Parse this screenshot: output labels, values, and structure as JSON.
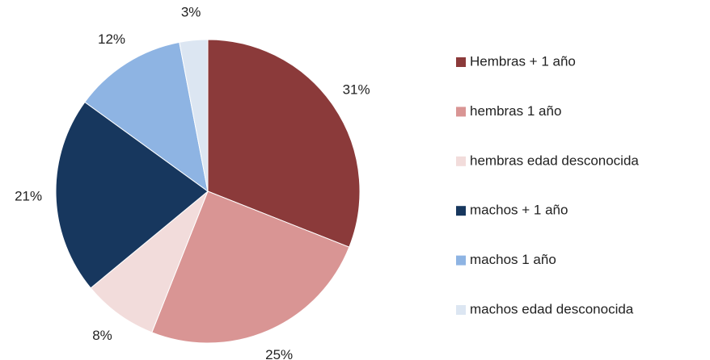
{
  "chart_data": {
    "type": "pie",
    "categories": [
      "Hembras + 1 año",
      "hembras 1 año",
      "hembras edad desconocida",
      "machos + 1 año",
      "machos 1 año",
      "machos edad desconocida"
    ],
    "values": [
      31,
      25,
      8,
      21,
      12,
      3
    ],
    "value_labels": [
      "31%",
      "25%",
      "8%",
      "21%",
      "12%",
      "3%"
    ],
    "colors": [
      "#8b3a3a",
      "#d99594",
      "#f2dcdb",
      "#17375e",
      "#8eb4e3",
      "#dce6f2"
    ],
    "legend": "right"
  }
}
